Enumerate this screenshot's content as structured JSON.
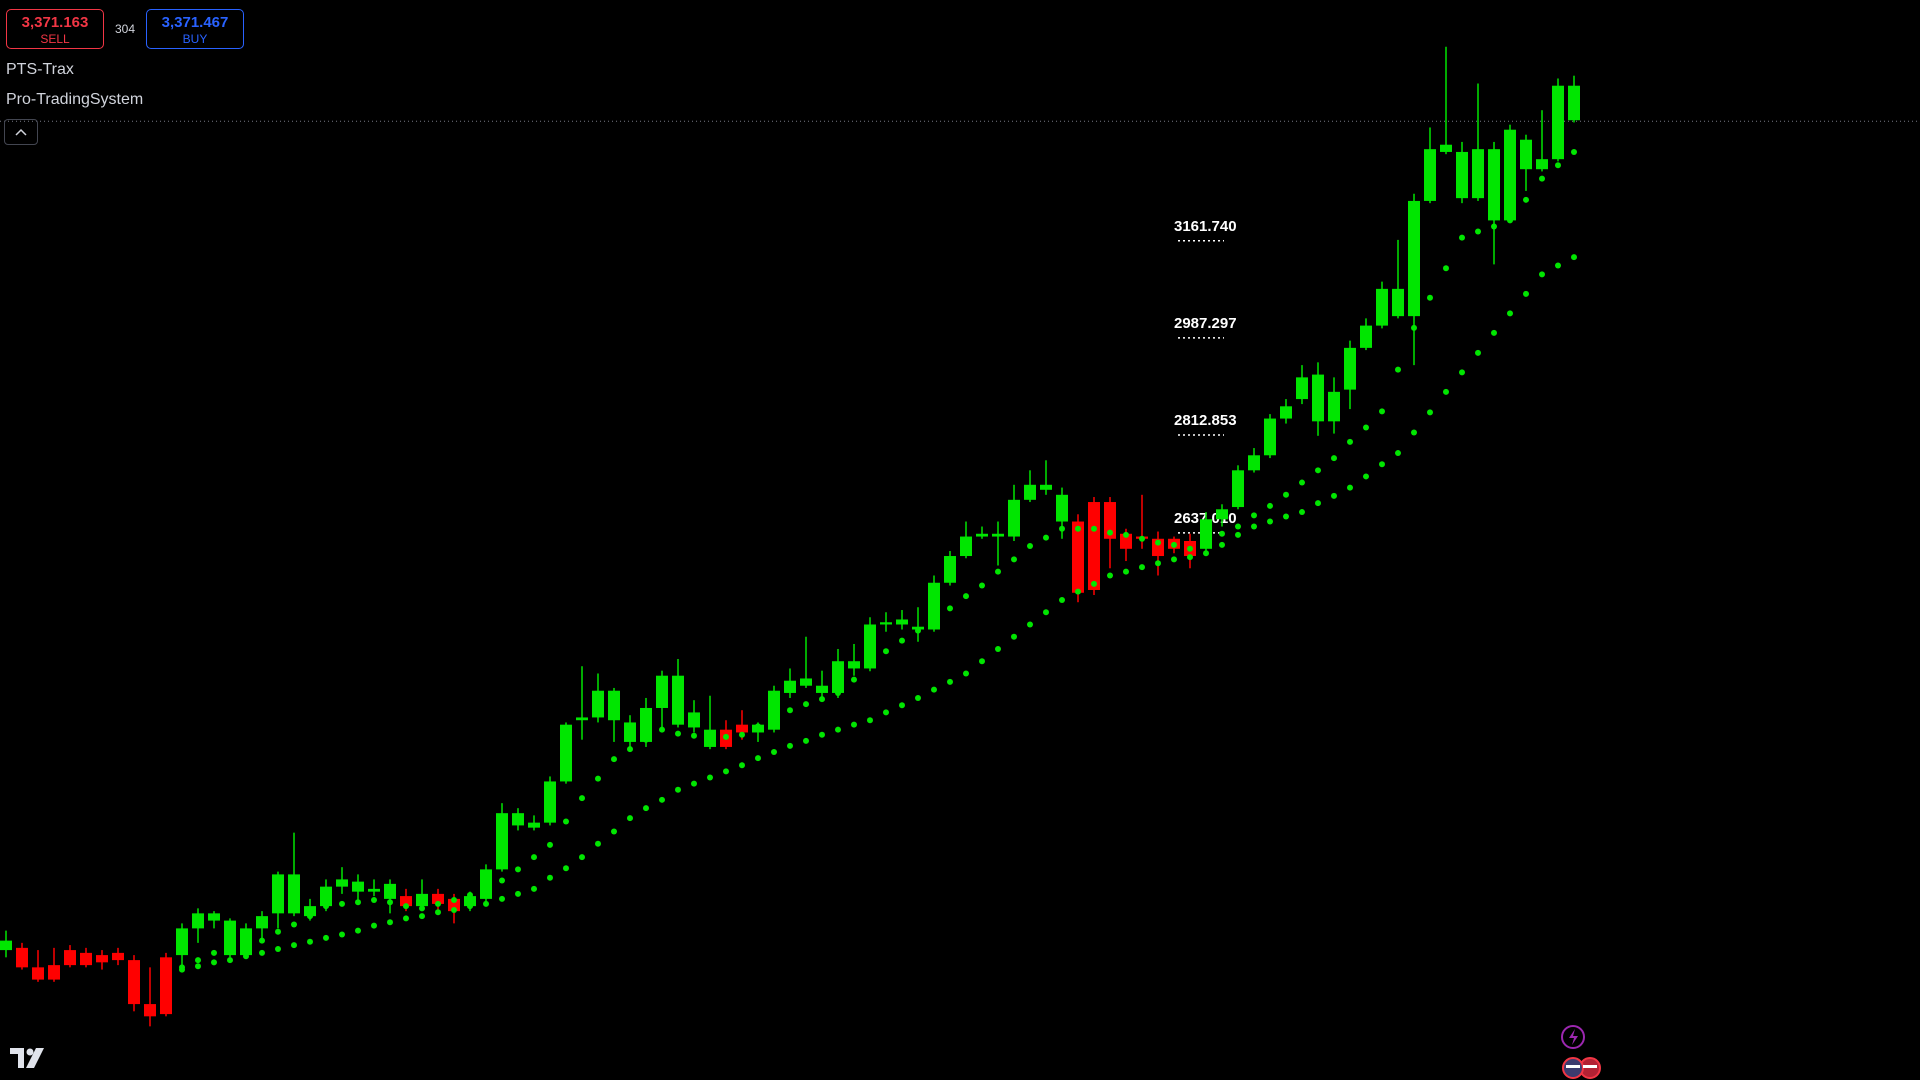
{
  "header": {
    "sell_price": "3,371.163",
    "sell": "SELL",
    "spread": "304",
    "buy_price": "3,371.467",
    "buy": "BUY"
  },
  "indicator": {
    "short_name": "PTS-Trax",
    "name": "Pro-TradingSystem"
  },
  "chart_data": {
    "type": "candlestick",
    "up_color": "#00e600",
    "down_color": "#ff0000",
    "ylim": [
      1648.6,
      3589
    ],
    "last_price": 3371.163,
    "open": [
      1882,
      1886,
      1851,
      1855,
      1882,
      1877,
      1873,
      1877,
      1864,
      1785,
      1869,
      1873,
      1921,
      1935,
      1873,
      1873,
      1921,
      1948,
      1948,
      1943,
      1961,
      1996,
      1987,
      1987,
      1974,
      1979,
      1961,
      1983,
      1974,
      1961,
      1974,
      2027,
      2106,
      2102,
      2111,
      2185,
      2295,
      2300,
      2295,
      2256,
      2256,
      2317,
      2287,
      2282,
      2247,
      2278,
      2287,
      2273,
      2278,
      2344,
      2357,
      2344,
      2344,
      2388,
      2388,
      2467,
      2467,
      2458,
      2458,
      2542,
      2590,
      2625,
      2625,
      2625,
      2691,
      2709,
      2652,
      2652,
      2687,
      2687,
      2630,
      2625,
      2621,
      2621,
      2617,
      2603,
      2656,
      2678,
      2744,
      2771,
      2837,
      2872,
      2832,
      2832,
      2889,
      2964,
      3004,
      3021,
      3021,
      3228,
      3316,
      3233,
      3233,
      3193,
      3193,
      3285,
      3285,
      3303,
      3373
    ],
    "high": [
      1917,
      1895,
      1882,
      1886,
      1891,
      1886,
      1882,
      1886,
      1873,
      1851,
      1877,
      1930,
      1957,
      1952,
      1939,
      1930,
      1952,
      2023,
      2093,
      1974,
      2009,
      2031,
      2018,
      2009,
      2009,
      1992,
      2009,
      1992,
      1983,
      1987,
      2036,
      2146,
      2137,
      2124,
      2194,
      2291,
      2392,
      2379,
      2353,
      2304,
      2335,
      2384,
      2405,
      2331,
      2339,
      2295,
      2313,
      2291,
      2357,
      2388,
      2445,
      2384,
      2423,
      2432,
      2480,
      2489,
      2493,
      2498,
      2555,
      2599,
      2652,
      2643,
      2652,
      2718,
      2744,
      2762,
      2713,
      2665,
      2696,
      2696,
      2639,
      2700,
      2634,
      2625,
      2630,
      2669,
      2683,
      2753,
      2784,
      2845,
      2872,
      2933,
      2938,
      2911,
      2977,
      3017,
      3083,
      3158,
      3241,
      3360,
      3505,
      3334,
      3439,
      3334,
      3365,
      3347,
      3391,
      3448,
      3453
    ],
    "low": [
      1869,
      1847,
      1825,
      1825,
      1851,
      1851,
      1847,
      1855,
      1772,
      1745,
      1763,
      1847,
      1895,
      1921,
      1869,
      1869,
      1895,
      1921,
      1943,
      1935,
      1952,
      1983,
      1965,
      1979,
      1948,
      1952,
      1957,
      1952,
      1930,
      1952,
      1970,
      2023,
      2097,
      2097,
      2106,
      2181,
      2260,
      2291,
      2256,
      2238,
      2247,
      2278,
      2282,
      2273,
      2243,
      2243,
      2260,
      2256,
      2273,
      2335,
      2353,
      2335,
      2335,
      2375,
      2383,
      2454,
      2458,
      2436,
      2454,
      2537,
      2586,
      2621,
      2573,
      2617,
      2687,
      2700,
      2621,
      2507,
      2520,
      2568,
      2581,
      2603,
      2555,
      2595,
      2568,
      2599,
      2643,
      2674,
      2740,
      2766,
      2828,
      2863,
      2806,
      2810,
      2854,
      2960,
      2999,
      3017,
      2933,
      3224,
      3312,
      3224,
      3228,
      3114,
      3189,
      3246,
      3281,
      3299,
      3369
    ],
    "close": [
      1899,
      1851,
      1829,
      1829,
      1855,
      1855,
      1860,
      1864,
      1785,
      1763,
      1767,
      1921,
      1948,
      1948,
      1935,
      1921,
      1943,
      2018,
      2018,
      1961,
      1996,
      2009,
      2005,
      1992,
      2001,
      1961,
      1983,
      1965,
      1952,
      1979,
      2027,
      2128,
      2128,
      2111,
      2185,
      2287,
      2300,
      2348,
      2348,
      2291,
      2317,
      2375,
      2375,
      2309,
      2278,
      2247,
      2273,
      2287,
      2348,
      2366,
      2370,
      2357,
      2401,
      2401,
      2467,
      2471,
      2476,
      2463,
      2542,
      2590,
      2625,
      2630,
      2630,
      2691,
      2718,
      2718,
      2700,
      2524,
      2529,
      2621,
      2603,
      2621,
      2590,
      2603,
      2590,
      2656,
      2674,
      2744,
      2771,
      2837,
      2859,
      2911,
      2916,
      2885,
      2964,
      3004,
      3070,
      3070,
      3228,
      3321,
      3329,
      3316,
      3321,
      3321,
      3356,
      3338,
      3303,
      3435,
      3435
    ],
    "dots": [
      {
        "color": "#00e600",
        "values": [
          null,
          null,
          null,
          null,
          null,
          null,
          null,
          null,
          null,
          null,
          null,
          1851,
          1864,
          1877,
          1884,
          1893,
          1899,
          1915,
          1928,
          1943,
          1961,
          1965,
          1968,
          1972,
          1968,
          1961,
          1957,
          1965,
          1972,
          1981,
          1987,
          2007,
          2027,
          2049,
          2071,
          2113,
          2155,
          2190,
          2225,
          2243,
          2260,
          2278,
          2271,
          2267,
          2260,
          2265,
          2269,
          2284,
          2298,
          2313,
          2324,
          2333,
          2344,
          2368,
          2394,
          2419,
          2438,
          2456,
          2476,
          2496,
          2518,
          2537,
          2562,
          2584,
          2608,
          2623,
          2639,
          2639,
          2639,
          2632,
          2628,
          2621,
          2614,
          2610,
          2603,
          2617,
          2630,
          2643,
          2663,
          2680,
          2700,
          2722,
          2744,
          2766,
          2795,
          2821,
          2850,
          2925,
          3000,
          3054,
          3107,
          3162,
          3173,
          3182,
          3193,
          3230,
          3268,
          3292,
          3316
        ]
      },
      {
        "color": "#00e600",
        "values": [
          null,
          null,
          null,
          null,
          null,
          null,
          null,
          null,
          null,
          null,
          null,
          1847,
          1853,
          1860,
          1864,
          1871,
          1877,
          1884,
          1891,
          1897,
          1904,
          1910,
          1917,
          1926,
          1932,
          1939,
          1943,
          1950,
          1954,
          1961,
          1965,
          1974,
          1983,
          1992,
          2012,
          2029,
          2049,
          2073,
          2095,
          2119,
          2137,
          2152,
          2170,
          2181,
          2192,
          2203,
          2214,
          2227,
          2238,
          2249,
          2258,
          2269,
          2278,
          2287,
          2295,
          2309,
          2322,
          2335,
          2350,
          2364,
          2379,
          2401,
          2423,
          2445,
          2467,
          2489,
          2511,
          2526,
          2540,
          2555,
          2562,
          2570,
          2577,
          2584,
          2588,
          2595,
          2610,
          2628,
          2643,
          2652,
          2661,
          2669,
          2685,
          2698,
          2713,
          2733,
          2755,
          2775,
          2812,
          2848,
          2885,
          2920,
          2955,
          2991,
          3026,
          3061,
          3096,
          3112,
          3127
        ]
      }
    ],
    "levels": [
      {
        "value": 3161.74,
        "label": "3161.740"
      },
      {
        "value": 2987.297,
        "label": "2987.297"
      },
      {
        "value": 2812.853,
        "label": "2812.853"
      },
      {
        "value": 2637.01,
        "label": "2637.010"
      }
    ]
  }
}
